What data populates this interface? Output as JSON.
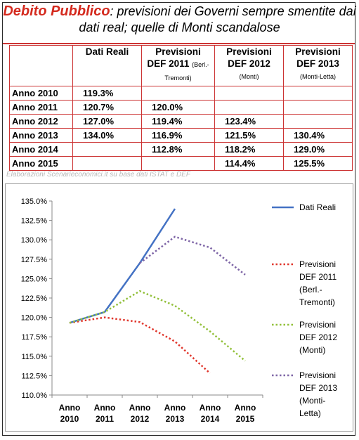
{
  "title": {
    "highlight": "Debito Pubblico",
    "rest": ": previsioni dei Governi sempre smentite dai dati real; quelle di Monti scandalose"
  },
  "table": {
    "headers": [
      {
        "line1": "",
        "line2": "",
        "small": ""
      },
      {
        "line1": "Dati Reali",
        "line2": "",
        "small": ""
      },
      {
        "line1": "Previsioni",
        "line2": "DEF 2011",
        "small": "(Berl.-Tremonti)"
      },
      {
        "line1": "Previsioni",
        "line2": "DEF 2012",
        "small": "(Monti)"
      },
      {
        "line1": "Previsioni",
        "line2": "DEF 2013",
        "small": "(Monti-Letta)"
      }
    ],
    "rows": [
      {
        "label": "Anno 2010",
        "cells": [
          "119.3%",
          "",
          "",
          ""
        ]
      },
      {
        "label": "Anno 2011",
        "cells": [
          "120.7%",
          "120.0%",
          "",
          ""
        ]
      },
      {
        "label": "Anno 2012",
        "cells": [
          "127.0%",
          "119.4%",
          "123.4%",
          ""
        ]
      },
      {
        "label": "Anno 2013",
        "cells": [
          "134.0%",
          "116.9%",
          "121.5%",
          "130.4%"
        ]
      },
      {
        "label": "Anno 2014",
        "cells": [
          "",
          "112.8%",
          "118.2%",
          "129.0%"
        ]
      },
      {
        "label": "Anno 2015",
        "cells": [
          "",
          "",
          "114.4%",
          "125.5%"
        ]
      }
    ]
  },
  "source_note": "Elaborazioni Scenarieconomici.it su base dati ISTAT e DEF",
  "chart_data": {
    "type": "line",
    "categories": [
      "Anno 2010",
      "Anno 2011",
      "Anno 2012",
      "Anno 2013",
      "Anno 2014",
      "Anno 2015"
    ],
    "ylim": [
      110.0,
      135.0
    ],
    "yticks": [
      "110.0%",
      "112.5%",
      "115.0%",
      "117.5%",
      "120.0%",
      "122.5%",
      "125.0%",
      "127.5%",
      "130.0%",
      "132.5%",
      "135.0%"
    ],
    "grid": false,
    "legend_position": "right",
    "series": [
      {
        "name": "Dati Reali",
        "values": [
          119.3,
          120.7,
          127.0,
          134.0,
          null,
          null
        ],
        "color": "#4472c4",
        "style": "solid"
      },
      {
        "name": "Previsioni DEF 2011 (Berl.-Tremonti)",
        "values": [
          119.3,
          120.0,
          119.4,
          116.9,
          112.8,
          null
        ],
        "color": "#e0362c",
        "style": "dotted"
      },
      {
        "name": "Previsioni DEF 2012 (Monti)",
        "values": [
          119.3,
          120.7,
          123.4,
          121.5,
          118.2,
          114.4
        ],
        "color": "#92c03a",
        "style": "dotted"
      },
      {
        "name": "Previsioni DEF 2013 (Monti-Letta)",
        "values": [
          null,
          null,
          127.0,
          130.4,
          129.0,
          125.5
        ],
        "color": "#7d64a6",
        "style": "dotted"
      }
    ],
    "legend_labels": [
      [
        "Dati Reali"
      ],
      [
        "Previsioni",
        "DEF 2011",
        "(Berl.-",
        "Tremonti)"
      ],
      [
        "Previsioni",
        "DEF 2012",
        "(Monti)"
      ],
      [
        "Previsioni",
        "DEF 2013",
        "(Monti-",
        "Letta)"
      ]
    ]
  }
}
